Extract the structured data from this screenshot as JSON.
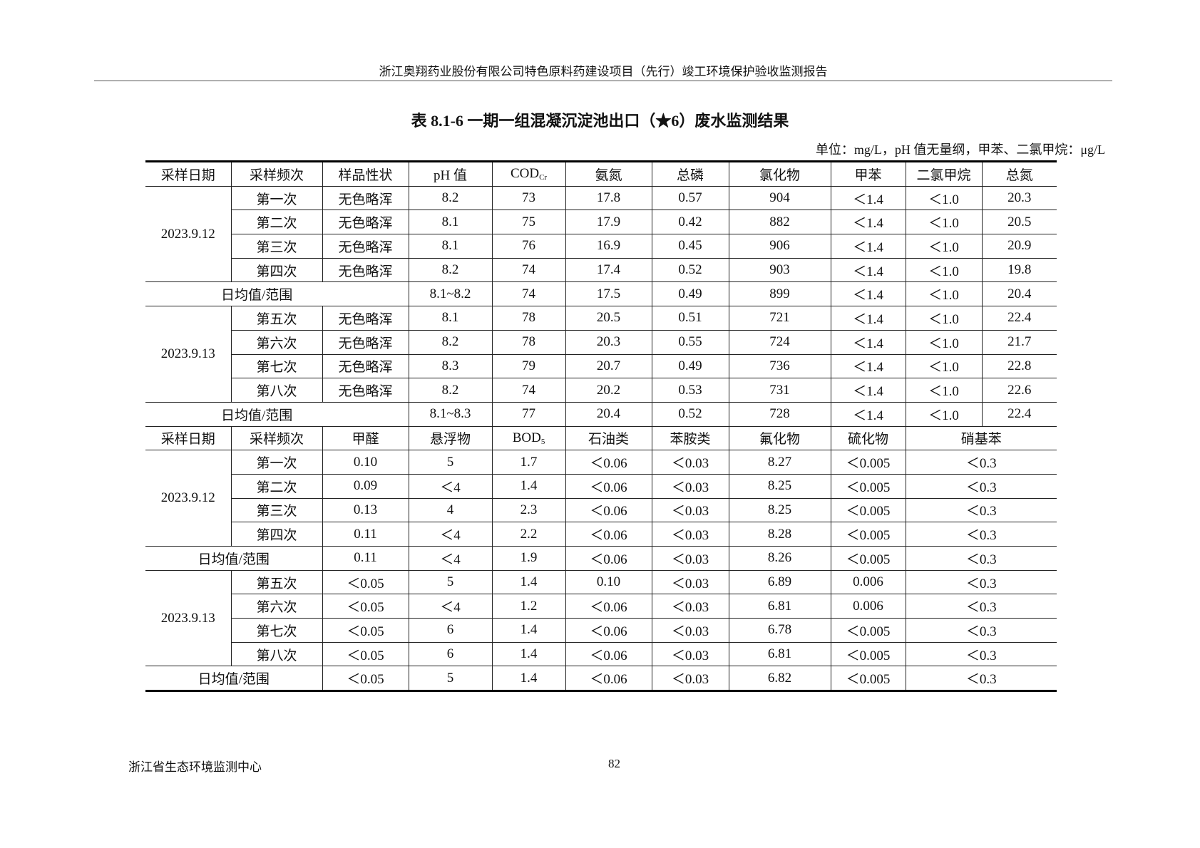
{
  "header": {
    "text": "浙江奥翔药业股份有限公司特色原料药建设项目（先行）竣工环境保护验收监测报告"
  },
  "title": "表 8.1-6  一期一组混凝沉淀池出口（★6）废水监测结果",
  "units": "单位：mg/L，pH 值无量纲，甲苯、二氯甲烷：μg/L",
  "table1": {
    "headers": [
      "采样日期",
      "采样频次",
      "样品性状",
      "pH 值",
      "COD",
      "氨氮",
      "总磷",
      "氯化物",
      "甲苯",
      "二氯甲烷",
      "总氮"
    ],
    "cod_sub": "Cr",
    "groups": [
      {
        "date": "2023.9.12",
        "rows": [
          [
            "第一次",
            "无色略浑",
            "8.2",
            "73",
            "17.8",
            "0.57",
            "904",
            "＜1.4",
            "＜1.0",
            "20.3"
          ],
          [
            "第二次",
            "无色略浑",
            "8.1",
            "75",
            "17.9",
            "0.42",
            "882",
            "＜1.4",
            "＜1.0",
            "20.5"
          ],
          [
            "第三次",
            "无色略浑",
            "8.1",
            "76",
            "16.9",
            "0.45",
            "906",
            "＜1.4",
            "＜1.0",
            "20.9"
          ],
          [
            "第四次",
            "无色略浑",
            "8.2",
            "74",
            "17.4",
            "0.52",
            "903",
            "＜1.4",
            "＜1.0",
            "19.8"
          ]
        ],
        "summary": [
          "日均值/范围",
          "8.1~8.2",
          "74",
          "17.5",
          "0.49",
          "899",
          "＜1.4",
          "＜1.0",
          "20.4"
        ]
      },
      {
        "date": "2023.9.13",
        "rows": [
          [
            "第五次",
            "无色略浑",
            "8.1",
            "78",
            "20.5",
            "0.51",
            "721",
            "＜1.4",
            "＜1.0",
            "22.4"
          ],
          [
            "第六次",
            "无色略浑",
            "8.2",
            "78",
            "20.3",
            "0.55",
            "724",
            "＜1.4",
            "＜1.0",
            "21.7"
          ],
          [
            "第七次",
            "无色略浑",
            "8.3",
            "79",
            "20.7",
            "0.49",
            "736",
            "＜1.4",
            "＜1.0",
            "22.8"
          ],
          [
            "第八次",
            "无色略浑",
            "8.2",
            "74",
            "20.2",
            "0.53",
            "731",
            "＜1.4",
            "＜1.0",
            "22.6"
          ]
        ],
        "summary": [
          "日均值/范围",
          "8.1~8.3",
          "77",
          "20.4",
          "0.52",
          "728",
          "＜1.4",
          "＜1.0",
          "22.4"
        ]
      }
    ]
  },
  "table2": {
    "headers": [
      "采样日期",
      "采样频次",
      "甲醛",
      "悬浮物",
      "BOD",
      "石油类",
      "苯胺类",
      "氟化物",
      "硫化物",
      "硝基苯"
    ],
    "bod_sub": "5",
    "groups": [
      {
        "date": "2023.9.12",
        "rows": [
          [
            "第一次",
            "0.10",
            "5",
            "1.7",
            "＜0.06",
            "＜0.03",
            "8.27",
            "＜0.005",
            "＜0.3"
          ],
          [
            "第二次",
            "0.09",
            "＜4",
            "1.4",
            "＜0.06",
            "＜0.03",
            "8.25",
            "＜0.005",
            "＜0.3"
          ],
          [
            "第三次",
            "0.13",
            "4",
            "2.3",
            "＜0.06",
            "＜0.03",
            "8.25",
            "＜0.005",
            "＜0.3"
          ],
          [
            "第四次",
            "0.11",
            "＜4",
            "2.2",
            "＜0.06",
            "＜0.03",
            "8.28",
            "＜0.005",
            "＜0.3"
          ]
        ],
        "summary": [
          "日均值/范围",
          "0.11",
          "＜4",
          "1.9",
          "＜0.06",
          "＜0.03",
          "8.26",
          "＜0.005",
          "＜0.3"
        ]
      },
      {
        "date": "2023.9.13",
        "rows": [
          [
            "第五次",
            "＜0.05",
            "5",
            "1.4",
            "0.10",
            "＜0.03",
            "6.89",
            "0.006",
            "＜0.3"
          ],
          [
            "第六次",
            "＜0.05",
            "＜4",
            "1.2",
            "＜0.06",
            "＜0.03",
            "6.81",
            "0.006",
            "＜0.3"
          ],
          [
            "第七次",
            "＜0.05",
            "6",
            "1.4",
            "＜0.06",
            "＜0.03",
            "6.78",
            "＜0.005",
            "＜0.3"
          ],
          [
            "第八次",
            "＜0.05",
            "6",
            "1.4",
            "＜0.06",
            "＜0.03",
            "6.81",
            "＜0.005",
            "＜0.3"
          ]
        ],
        "summary": [
          "日均值/范围",
          "＜0.05",
          "5",
          "1.4",
          "＜0.06",
          "＜0.03",
          "6.82",
          "＜0.005",
          "＜0.3"
        ]
      }
    ]
  },
  "footer": {
    "org": "浙江省生态环境监测中心",
    "page": "82"
  }
}
